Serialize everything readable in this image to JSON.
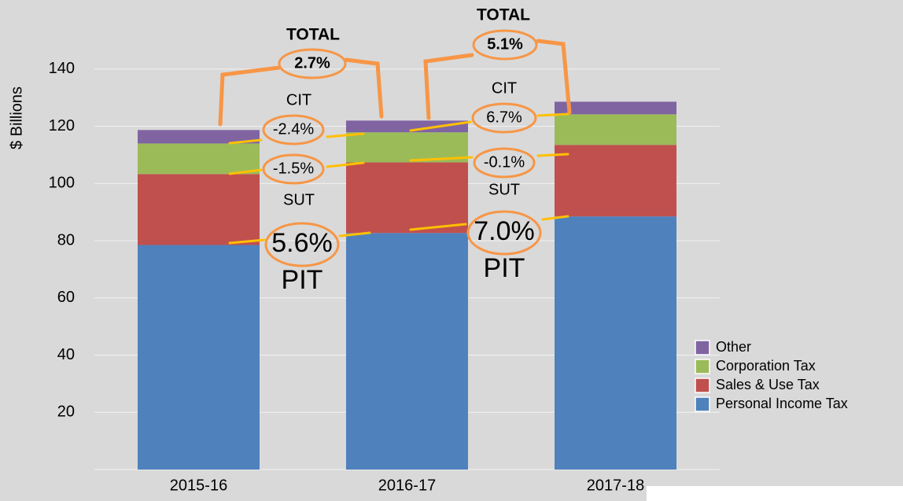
{
  "chart_data": {
    "type": "stacked-bar",
    "y_label": "$ Billions",
    "categories": [
      "2015-16",
      "2016-17",
      "2017-18"
    ],
    "series": [
      {
        "name": "Personal Income Tax",
        "color": "#4f81bd",
        "values": [
          78.5,
          82.7,
          88.5
        ]
      },
      {
        "name": "Sales & Use Tax",
        "color": "#c0504d",
        "values": [
          24.8,
          24.7,
          25.0
        ]
      },
      {
        "name": "Corporation Tax",
        "color": "#9bbb59",
        "values": [
          10.7,
          10.5,
          10.7
        ]
      },
      {
        "name": "Other",
        "color": "#8064a2",
        "values": [
          4.7,
          4.1,
          4.4
        ]
      }
    ],
    "ylim": [
      0,
      150
    ],
    "yticks": [
      20,
      40,
      60,
      80,
      100,
      120,
      140
    ],
    "grid": true,
    "legend": "lower right",
    "annotations": [
      "TOTAL",
      "2.7%",
      "TOTAL",
      "5.1%",
      "CIT",
      "-2.4%",
      "-1.5%",
      "SUT",
      "5.6%",
      "PIT",
      "CIT",
      "6.7%",
      "-0.1%",
      "SUT",
      "7.0%",
      "PIT"
    ]
  }
}
